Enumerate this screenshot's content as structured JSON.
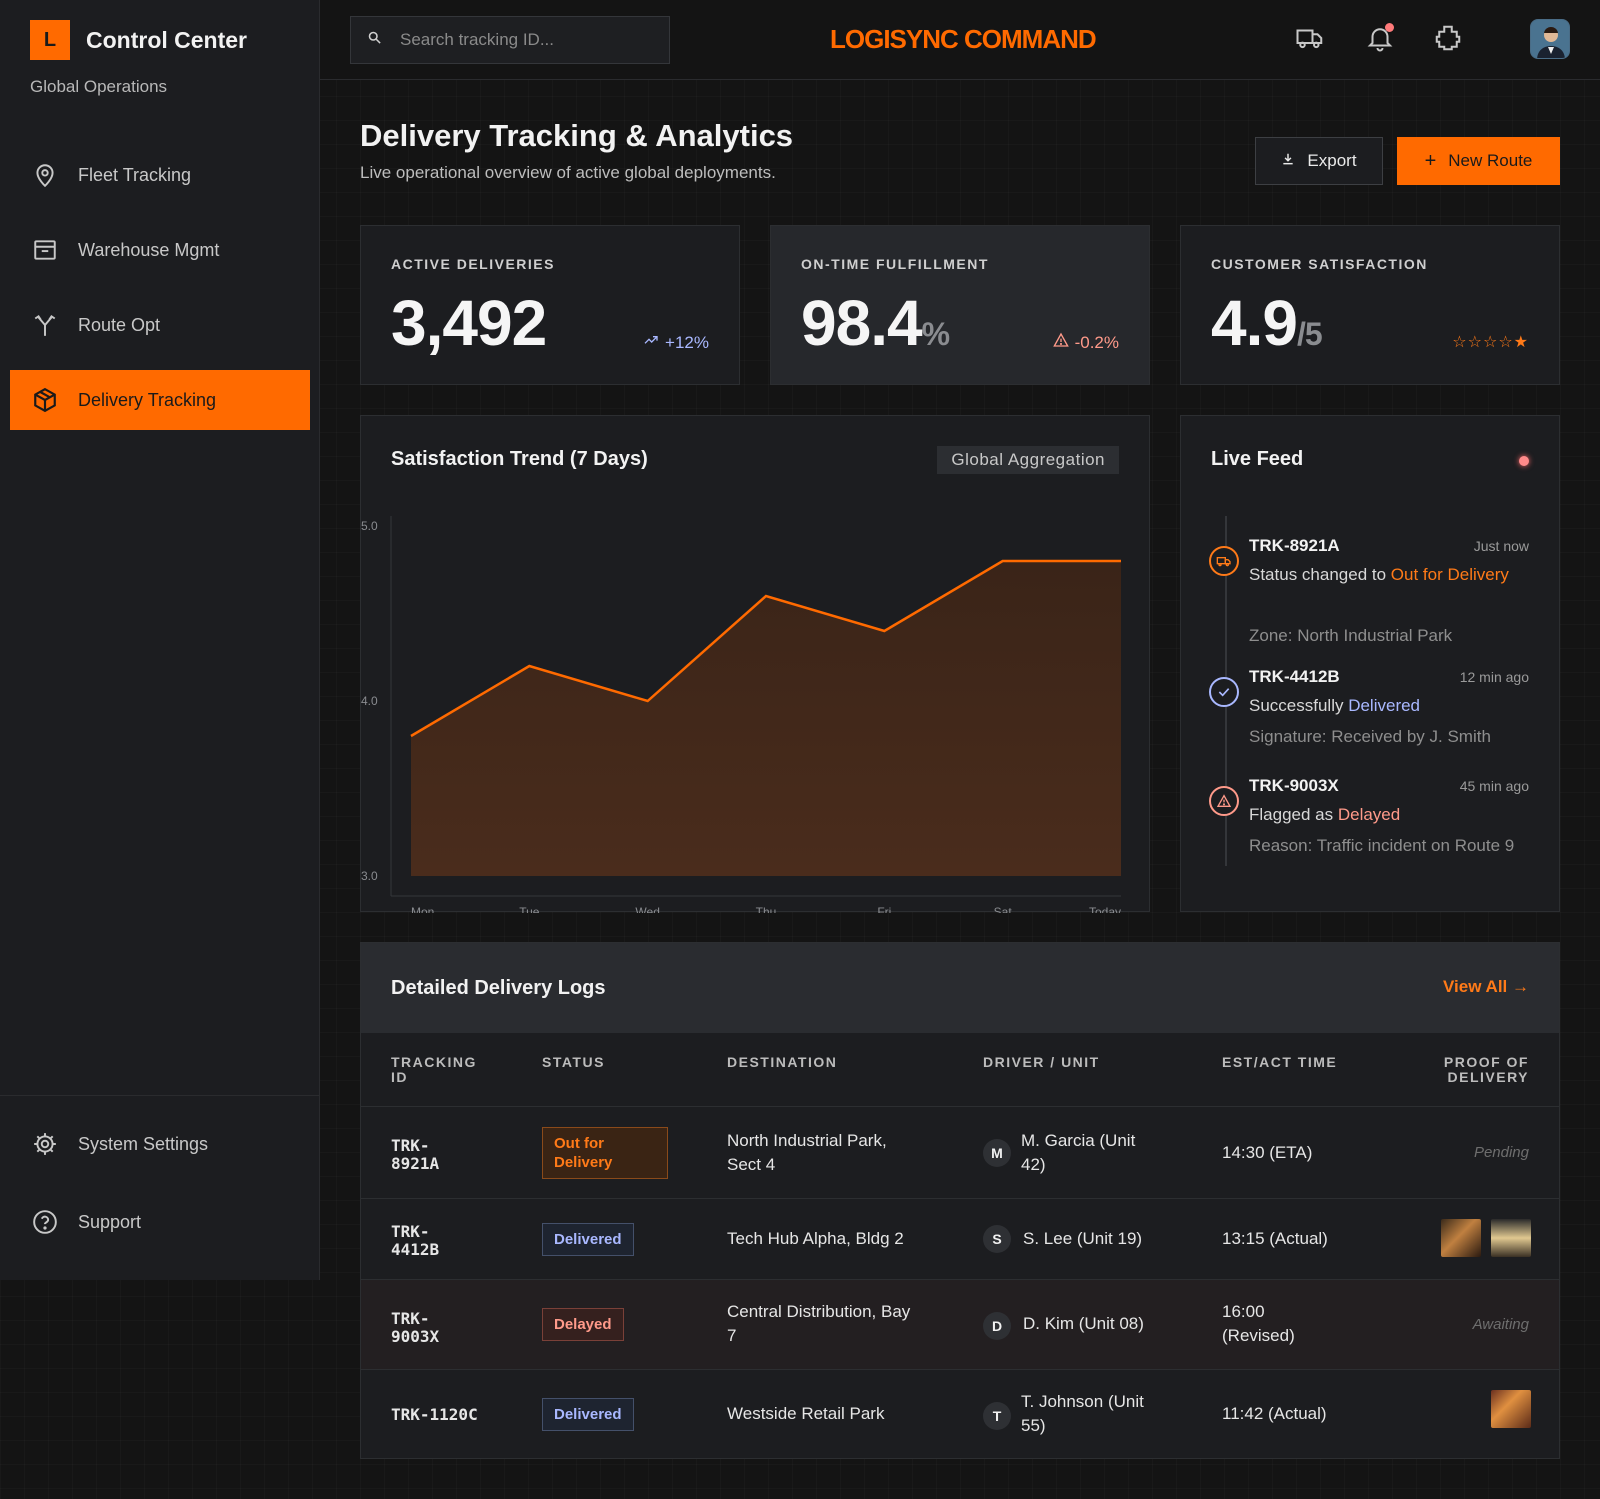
{
  "brand": {
    "logo_letter": "L",
    "title": "Control Center",
    "subtitle": "Global Operations"
  },
  "sidebar": {
    "items": [
      {
        "label": "Fleet Tracking",
        "icon": "map-pin-icon",
        "active": false
      },
      {
        "label": "Warehouse Mgmt",
        "icon": "archive-box-icon",
        "active": false
      },
      {
        "label": "Route Opt",
        "icon": "route-split-icon",
        "active": false
      },
      {
        "label": "Delivery Tracking",
        "icon": "package-box-icon",
        "active": true
      }
    ],
    "bottom": [
      {
        "label": "System Settings",
        "icon": "gear-icon"
      },
      {
        "label": "Support",
        "icon": "help-circle-icon"
      }
    ]
  },
  "header": {
    "search_placeholder": "Search tracking ID...",
    "app_title": "LOGISYNC COMMAND",
    "icons": [
      "truck-icon",
      "bell-icon",
      "puzzle-icon",
      "user-avatar"
    ]
  },
  "page": {
    "title": "Delivery Tracking & Analytics",
    "subtitle": "Live operational overview of active global deployments.",
    "export_label": "Export",
    "new_route_label": "New Route"
  },
  "stats": [
    {
      "label": "ACTIVE DELIVERIES",
      "value": "3,492",
      "unit": "",
      "delta": "+12%",
      "delta_color": "#a9b8ff"
    },
    {
      "label": "ON-TIME FULFILLMENT",
      "value": "98.4",
      "unit": "%",
      "delta": "-0.2%",
      "delta_color": "#ff9a8a"
    },
    {
      "label": "CUSTOMER SATISFACTION",
      "value": "4.9",
      "unit": "/5",
      "stars": "☆☆☆☆★",
      "rating": 4.9
    }
  ],
  "chart": {
    "title": "Satisfaction Trend (7 Days)",
    "tag": "Global Aggregation"
  },
  "chart_data": {
    "type": "area",
    "title": "Satisfaction Trend (7 Days)",
    "categories": [
      "Mon",
      "Tue",
      "Wed",
      "Thu",
      "Fri",
      "Sat",
      "Today"
    ],
    "values": [
      3.8,
      4.2,
      4.0,
      4.6,
      4.4,
      4.8,
      4.8
    ],
    "y_ticks": [
      "5.0",
      "4.0",
      "3.0"
    ],
    "ylim": [
      3.0,
      5.0
    ],
    "line_color": "#ff6a00",
    "grid": false
  },
  "feed": {
    "title": "Live Feed",
    "items": [
      {
        "id": "TRK-8921A",
        "time": "Just now",
        "msg_prefix": "Status changed to ",
        "msg_highlight": "Out for Delivery",
        "detail": "Zone: North Industrial Park",
        "icon": "truck-icon",
        "color": "#ff7a18"
      },
      {
        "id": "TRK-4412B",
        "time": "12 min ago",
        "msg_prefix": "Successfully ",
        "msg_highlight": "Delivered",
        "detail": "Signature: Received by J. Smith",
        "icon": "check-circle-icon",
        "color": "#a9b8ff"
      },
      {
        "id": "TRK-9003X",
        "time": "45 min ago",
        "msg_prefix": "Flagged as ",
        "msg_highlight": "Delayed",
        "detail": "Reason: Traffic incident on Route 9",
        "icon": "warning-icon",
        "color": "#ff9a8a"
      }
    ]
  },
  "table": {
    "title": "Detailed Delivery Logs",
    "view_all": "View All",
    "headers": [
      "TRACKING ID",
      "STATUS",
      "DESTINATION",
      "DRIVER / UNIT",
      "EST/ACT TIME",
      "PROOF OF DELIVERY"
    ],
    "rows": [
      {
        "id": "TRK-8921A",
        "status": "Out for Delivery",
        "destination": "North Industrial Park, Sect 4",
        "driver_initial": "M",
        "driver": "M. Garcia (Unit 42)",
        "time": "14:30 (ETA)",
        "pod": "Pending"
      },
      {
        "id": "TRK-4412B",
        "status": "Delivered",
        "destination": "Tech Hub Alpha, Bldg 2",
        "driver_initial": "S",
        "driver": "S. Lee (Unit 19)",
        "time": "13:15 (Actual)",
        "pod": ""
      },
      {
        "id": "TRK-9003X",
        "status": "Delayed",
        "destination": "Central Distribution, Bay 7",
        "driver_initial": "D",
        "driver": "D. Kim (Unit 08)",
        "time": "16:00 (Revised)",
        "pod": "Awaiting"
      },
      {
        "id": "TRK-1120C",
        "status": "Delivered",
        "destination": "Westside Retail Park",
        "driver_initial": "T",
        "driver": "T. Johnson (Unit 55)",
        "time": "11:42 (Actual)",
        "pod": ""
      }
    ]
  }
}
